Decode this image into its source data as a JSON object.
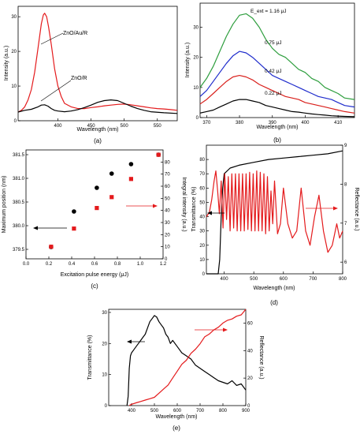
{
  "chart_data": [
    {
      "panel": "(a)",
      "type": "line",
      "xlabel": "Wavelength (nm)",
      "ylabel": "Intensity (a.u.)",
      "xlim": [
        340,
        580
      ],
      "ylim": [
        0,
        33
      ],
      "xticks": [
        400,
        450,
        500,
        550
      ],
      "yticks": [
        0,
        10,
        20,
        30
      ],
      "series": [
        {
          "name": "ZnO/Au/R",
          "color": "#e41a1c",
          "x": [
            340,
            345,
            350,
            355,
            360,
            365,
            370,
            375,
            378,
            380,
            383,
            386,
            390,
            395,
            400,
            405,
            410,
            420,
            430,
            440,
            450,
            460,
            470,
            480,
            490,
            500,
            510,
            520,
            530,
            540,
            550,
            560,
            570,
            580
          ],
          "y": [
            2.5,
            3,
            4,
            6,
            9,
            14,
            21,
            28,
            30.5,
            31,
            30,
            27,
            22,
            15,
            10,
            7,
            5,
            4,
            3.5,
            3.5,
            3.8,
            4,
            4.3,
            4.5,
            4.7,
            4.8,
            4.6,
            4.3,
            4,
            3.7,
            3.5,
            3.4,
            3.2,
            3
          ]
        },
        {
          "name": "ZnO/R",
          "color": "#000000",
          "x": [
            340,
            350,
            360,
            370,
            375,
            380,
            385,
            390,
            395,
            400,
            410,
            420,
            430,
            440,
            450,
            460,
            470,
            480,
            490,
            500,
            510,
            520,
            530,
            540,
            560,
            580
          ],
          "y": [
            2.5,
            3,
            3.3,
            4,
            4.5,
            4.6,
            4.2,
            3.5,
            3,
            2.8,
            2.6,
            2.8,
            3.2,
            3.8,
            4.5,
            5.3,
            5.8,
            6,
            5.8,
            5,
            4.2,
            3.5,
            3,
            2.6,
            2.3,
            2.1
          ]
        }
      ],
      "annotations": [
        "ZnO/Au/R",
        "ZnO/R"
      ]
    },
    {
      "panel": "(b)",
      "type": "line",
      "xlabel": "Wavelength (nm)",
      "ylabel": "Intensity (a.u.)",
      "xlim": [
        368,
        415
      ],
      "ylim": [
        0,
        38
      ],
      "xticks": [
        370,
        380,
        390,
        400,
        410
      ],
      "yticks": [
        0,
        10,
        20,
        30
      ],
      "series": [
        {
          "name": "1.16 μJ",
          "color": "#2e9e3e",
          "x": [
            368,
            370,
            372,
            374,
            376,
            378,
            380,
            382,
            384,
            386,
            388,
            390,
            392,
            394,
            396,
            398,
            400,
            402,
            404,
            406,
            408,
            410,
            412,
            415
          ],
          "y": [
            10,
            13,
            17,
            22,
            27,
            31,
            34,
            34.5,
            33,
            30,
            26,
            23,
            21,
            20,
            18,
            16,
            15,
            13,
            12,
            10,
            9,
            8,
            6.5,
            6
          ]
        },
        {
          "name": "0.75 μJ",
          "color": "#1f2ccc",
          "x": [
            368,
            370,
            372,
            374,
            376,
            378,
            380,
            382,
            384,
            386,
            388,
            390,
            392,
            394,
            396,
            398,
            400,
            402,
            404,
            406,
            408,
            410,
            412,
            415
          ],
          "y": [
            7,
            9,
            12,
            15,
            18,
            20.5,
            22,
            21.5,
            20,
            18,
            16,
            14,
            13,
            12,
            11,
            10,
            9,
            8,
            7,
            6.5,
            6,
            5,
            4,
            3.5
          ]
        },
        {
          "name": "0.42 μJ",
          "color": "#d9201c",
          "x": [
            368,
            370,
            372,
            374,
            376,
            378,
            380,
            382,
            384,
            386,
            388,
            390,
            392,
            394,
            396,
            398,
            400,
            402,
            404,
            406,
            408,
            410,
            412,
            415
          ],
          "y": [
            4.5,
            6,
            8,
            10,
            12,
            13.5,
            14,
            13.5,
            12.5,
            11,
            10,
            9,
            8,
            7,
            6.5,
            6,
            5,
            4.5,
            4,
            3.5,
            3,
            2.5,
            2,
            1.5
          ]
        },
        {
          "name": "0.22 μJ",
          "color": "#000000",
          "x": [
            368,
            370,
            372,
            374,
            376,
            378,
            380,
            382,
            384,
            386,
            388,
            390,
            392,
            394,
            396,
            398,
            400,
            402,
            404,
            406,
            408,
            410,
            412,
            415
          ],
          "y": [
            1.5,
            2,
            2.5,
            3.5,
            4.5,
            5.5,
            6,
            6,
            5.5,
            5,
            4,
            3.5,
            3,
            2.5,
            2,
            1.8,
            1.5,
            1.2,
            1,
            0.8,
            0.6,
            0.5,
            0.4,
            0.3
          ]
        }
      ],
      "labels": [
        "E_ext = 1.16 μJ",
        "0.75 μJ",
        "0.42 μJ",
        "0.22 μJ"
      ]
    },
    {
      "panel": "(c)",
      "type": "scatter",
      "xlabel": "Excitation pulse energy (μJ)",
      "ylabel": "Maximum position (nm)",
      "y2label": "Integral intensity (a.u.)",
      "xlim": [
        0,
        1.2
      ],
      "ylim": [
        379.3,
        381.6
      ],
      "y2lim": [
        0,
        90
      ],
      "xticks": [
        0.0,
        0.2,
        0.4,
        0.6,
        0.8,
        1.0,
        1.2
      ],
      "yticks": [
        379.5,
        380.0,
        380.5,
        381.0,
        381.5
      ],
      "y2ticks": [
        0,
        10,
        20,
        30,
        40,
        50,
        60,
        70,
        80
      ],
      "series": [
        {
          "name": "Maximum position",
          "color": "#000000",
          "marker": "circle",
          "axis": "left",
          "x": [
            0.22,
            0.42,
            0.62,
            0.75,
            0.92,
            1.16
          ],
          "y": [
            379.55,
            380.3,
            380.8,
            381.1,
            381.3,
            381.5
          ]
        },
        {
          "name": "Integral intensity",
          "color": "#e41a1c",
          "marker": "square",
          "axis": "right",
          "x": [
            0.22,
            0.42,
            0.62,
            0.75,
            0.92,
            1.16
          ],
          "y": [
            10,
            25,
            42,
            51,
            66,
            86
          ]
        }
      ]
    },
    {
      "panel": "(d)",
      "type": "line",
      "xlabel": "Wavelength (nm)",
      "ylabel": "Transmittance (%)",
      "y2label": "Reflectance (a.u.)",
      "xlim": [
        340,
        800
      ],
      "ylim": [
        0,
        90
      ],
      "y2lim": [
        5.7,
        9
      ],
      "xticks": [
        400,
        500,
        600,
        700,
        800
      ],
      "yticks": [
        0,
        10,
        20,
        30,
        40,
        50,
        60,
        70,
        80
      ],
      "y2ticks": [
        6,
        7,
        8,
        9
      ],
      "series": [
        {
          "name": "Transmittance",
          "color": "#000000",
          "axis": "left",
          "x": [
            340,
            370,
            380,
            385,
            390,
            395,
            400,
            420,
            450,
            500,
            550,
            600,
            650,
            700,
            750,
            800
          ],
          "y": [
            0,
            0,
            0,
            10,
            40,
            60,
            70,
            74,
            76,
            78,
            80,
            81,
            82,
            83,
            84,
            86
          ]
        },
        {
          "name": "Reflectance",
          "color": "#e41a1c",
          "axis": "left",
          "x": [
            340,
            350,
            358,
            366,
            372,
            378,
            384,
            390,
            396,
            402,
            408,
            414,
            420,
            426,
            432,
            438,
            444,
            450,
            456,
            462,
            468,
            474,
            480,
            486,
            492,
            498,
            504,
            510,
            516,
            522,
            528,
            534,
            540,
            546,
            552,
            558,
            564,
            570,
            580,
            590,
            600,
            615,
            630,
            645,
            660,
            675,
            690,
            705,
            720,
            735,
            750,
            765,
            780,
            790,
            800
          ],
          "y": [
            40,
            43,
            52,
            65,
            72,
            58,
            42,
            65,
            32,
            70,
            38,
            68,
            30,
            70,
            32,
            70,
            30,
            70,
            30,
            70,
            30,
            70,
            31,
            71,
            30,
            70,
            30,
            72,
            30,
            71,
            30,
            70,
            28,
            68,
            30,
            58,
            35,
            65,
            28,
            35,
            60,
            35,
            25,
            30,
            60,
            30,
            20,
            40,
            55,
            30,
            15,
            20,
            35,
            25,
            30
          ]
        }
      ],
      "annotations": [
        "left arrow: Transmittance axis",
        "right arrow: Reflectance axis"
      ]
    },
    {
      "panel": "(e)",
      "type": "line",
      "xlabel": "Wavelength (nm)",
      "ylabel": "Transmittance (%)",
      "y2label": "Reflectance (a.u.)",
      "xlim": [
        300,
        900
      ],
      "ylim": [
        0,
        31
      ],
      "y2lim": [
        0,
        70
      ],
      "xticks": [
        400,
        500,
        600,
        700,
        800,
        900
      ],
      "yticks": [
        0,
        10,
        20,
        30
      ],
      "y2ticks": [
        0,
        20,
        40,
        60
      ],
      "series": [
        {
          "name": "Transmittance",
          "color": "#000000",
          "axis": "left",
          "x": [
            380,
            385,
            390,
            395,
            400,
            410,
            420,
            430,
            440,
            450,
            460,
            470,
            480,
            490,
            500,
            510,
            520,
            530,
            540,
            550,
            560,
            570,
            580,
            600,
            620,
            640,
            660,
            680,
            700,
            720,
            740,
            760,
            780,
            800,
            820,
            840,
            860,
            880,
            900
          ],
          "y": [
            0,
            3,
            12,
            16,
            17,
            18,
            19,
            20,
            21,
            22,
            23,
            25,
            27,
            28,
            29,
            28.5,
            27,
            26,
            25,
            23,
            22,
            20,
            21,
            19,
            17,
            16,
            15,
            13,
            12,
            11,
            10,
            9,
            8,
            7.5,
            7,
            8,
            6.5,
            7,
            5
          ]
        },
        {
          "name": "Reflectance",
          "color": "#e41a1c",
          "axis": "right",
          "x": [
            390,
            400,
            420,
            440,
            460,
            480,
            500,
            520,
            540,
            560,
            580,
            600,
            620,
            640,
            660,
            680,
            700,
            720,
            740,
            760,
            780,
            800,
            820,
            840,
            860,
            880,
            900
          ],
          "y": [
            0,
            1,
            2,
            3,
            4,
            5,
            6,
            9,
            12,
            15,
            20,
            25,
            30,
            33,
            38,
            41,
            45,
            50,
            52,
            55,
            57,
            60,
            62,
            63,
            65,
            66,
            70
          ]
        }
      ],
      "annotations": [
        "left arrow: Transmittance axis",
        "right arrow: Reflectance axis"
      ]
    }
  ],
  "captions": {
    "a": "(a)",
    "b": "(b)",
    "c": "(c)",
    "d": "(d)",
    "e": "(e)"
  }
}
